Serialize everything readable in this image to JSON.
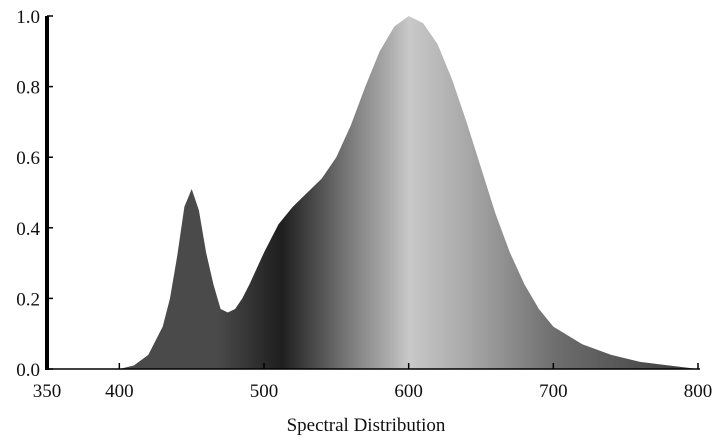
{
  "chart_data": {
    "type": "area",
    "title": "",
    "xlabel": "Spectral Distribution",
    "ylabel": "",
    "xlim": [
      350,
      800
    ],
    "ylim": [
      0,
      1.0
    ],
    "x_ticks": [
      "350",
      "400",
      "500",
      "600",
      "700",
      "800"
    ],
    "y_ticks": [
      "0.0",
      "0.2",
      "0.4",
      "0.6",
      "0.8",
      "1.0"
    ],
    "grid": false,
    "legend": "none",
    "fill_colors": [
      "#1e1e1e",
      "#4a4a4a",
      "#8c8c8c",
      "#a8a8a8",
      "#c9c9c9",
      "#6e6e6e",
      "#3a3a3a"
    ],
    "series": [
      {
        "x": [
          400,
          410,
          420,
          430,
          435,
          440,
          445,
          450,
          455,
          460,
          465,
          470,
          475,
          480,
          485,
          490,
          500,
          510,
          520,
          530,
          540,
          550,
          560,
          570,
          580,
          590,
          600,
          610,
          620,
          630,
          640,
          650,
          660,
          670,
          680,
          690,
          700,
          720,
          740,
          760,
          780,
          800
        ],
        "y": [
          0.0,
          0.01,
          0.04,
          0.12,
          0.2,
          0.32,
          0.46,
          0.51,
          0.45,
          0.33,
          0.24,
          0.17,
          0.16,
          0.17,
          0.2,
          0.24,
          0.33,
          0.41,
          0.46,
          0.5,
          0.54,
          0.6,
          0.69,
          0.8,
          0.9,
          0.97,
          1.0,
          0.98,
          0.92,
          0.82,
          0.7,
          0.57,
          0.44,
          0.33,
          0.24,
          0.17,
          0.12,
          0.07,
          0.04,
          0.02,
          0.01,
          0.0
        ]
      }
    ]
  }
}
